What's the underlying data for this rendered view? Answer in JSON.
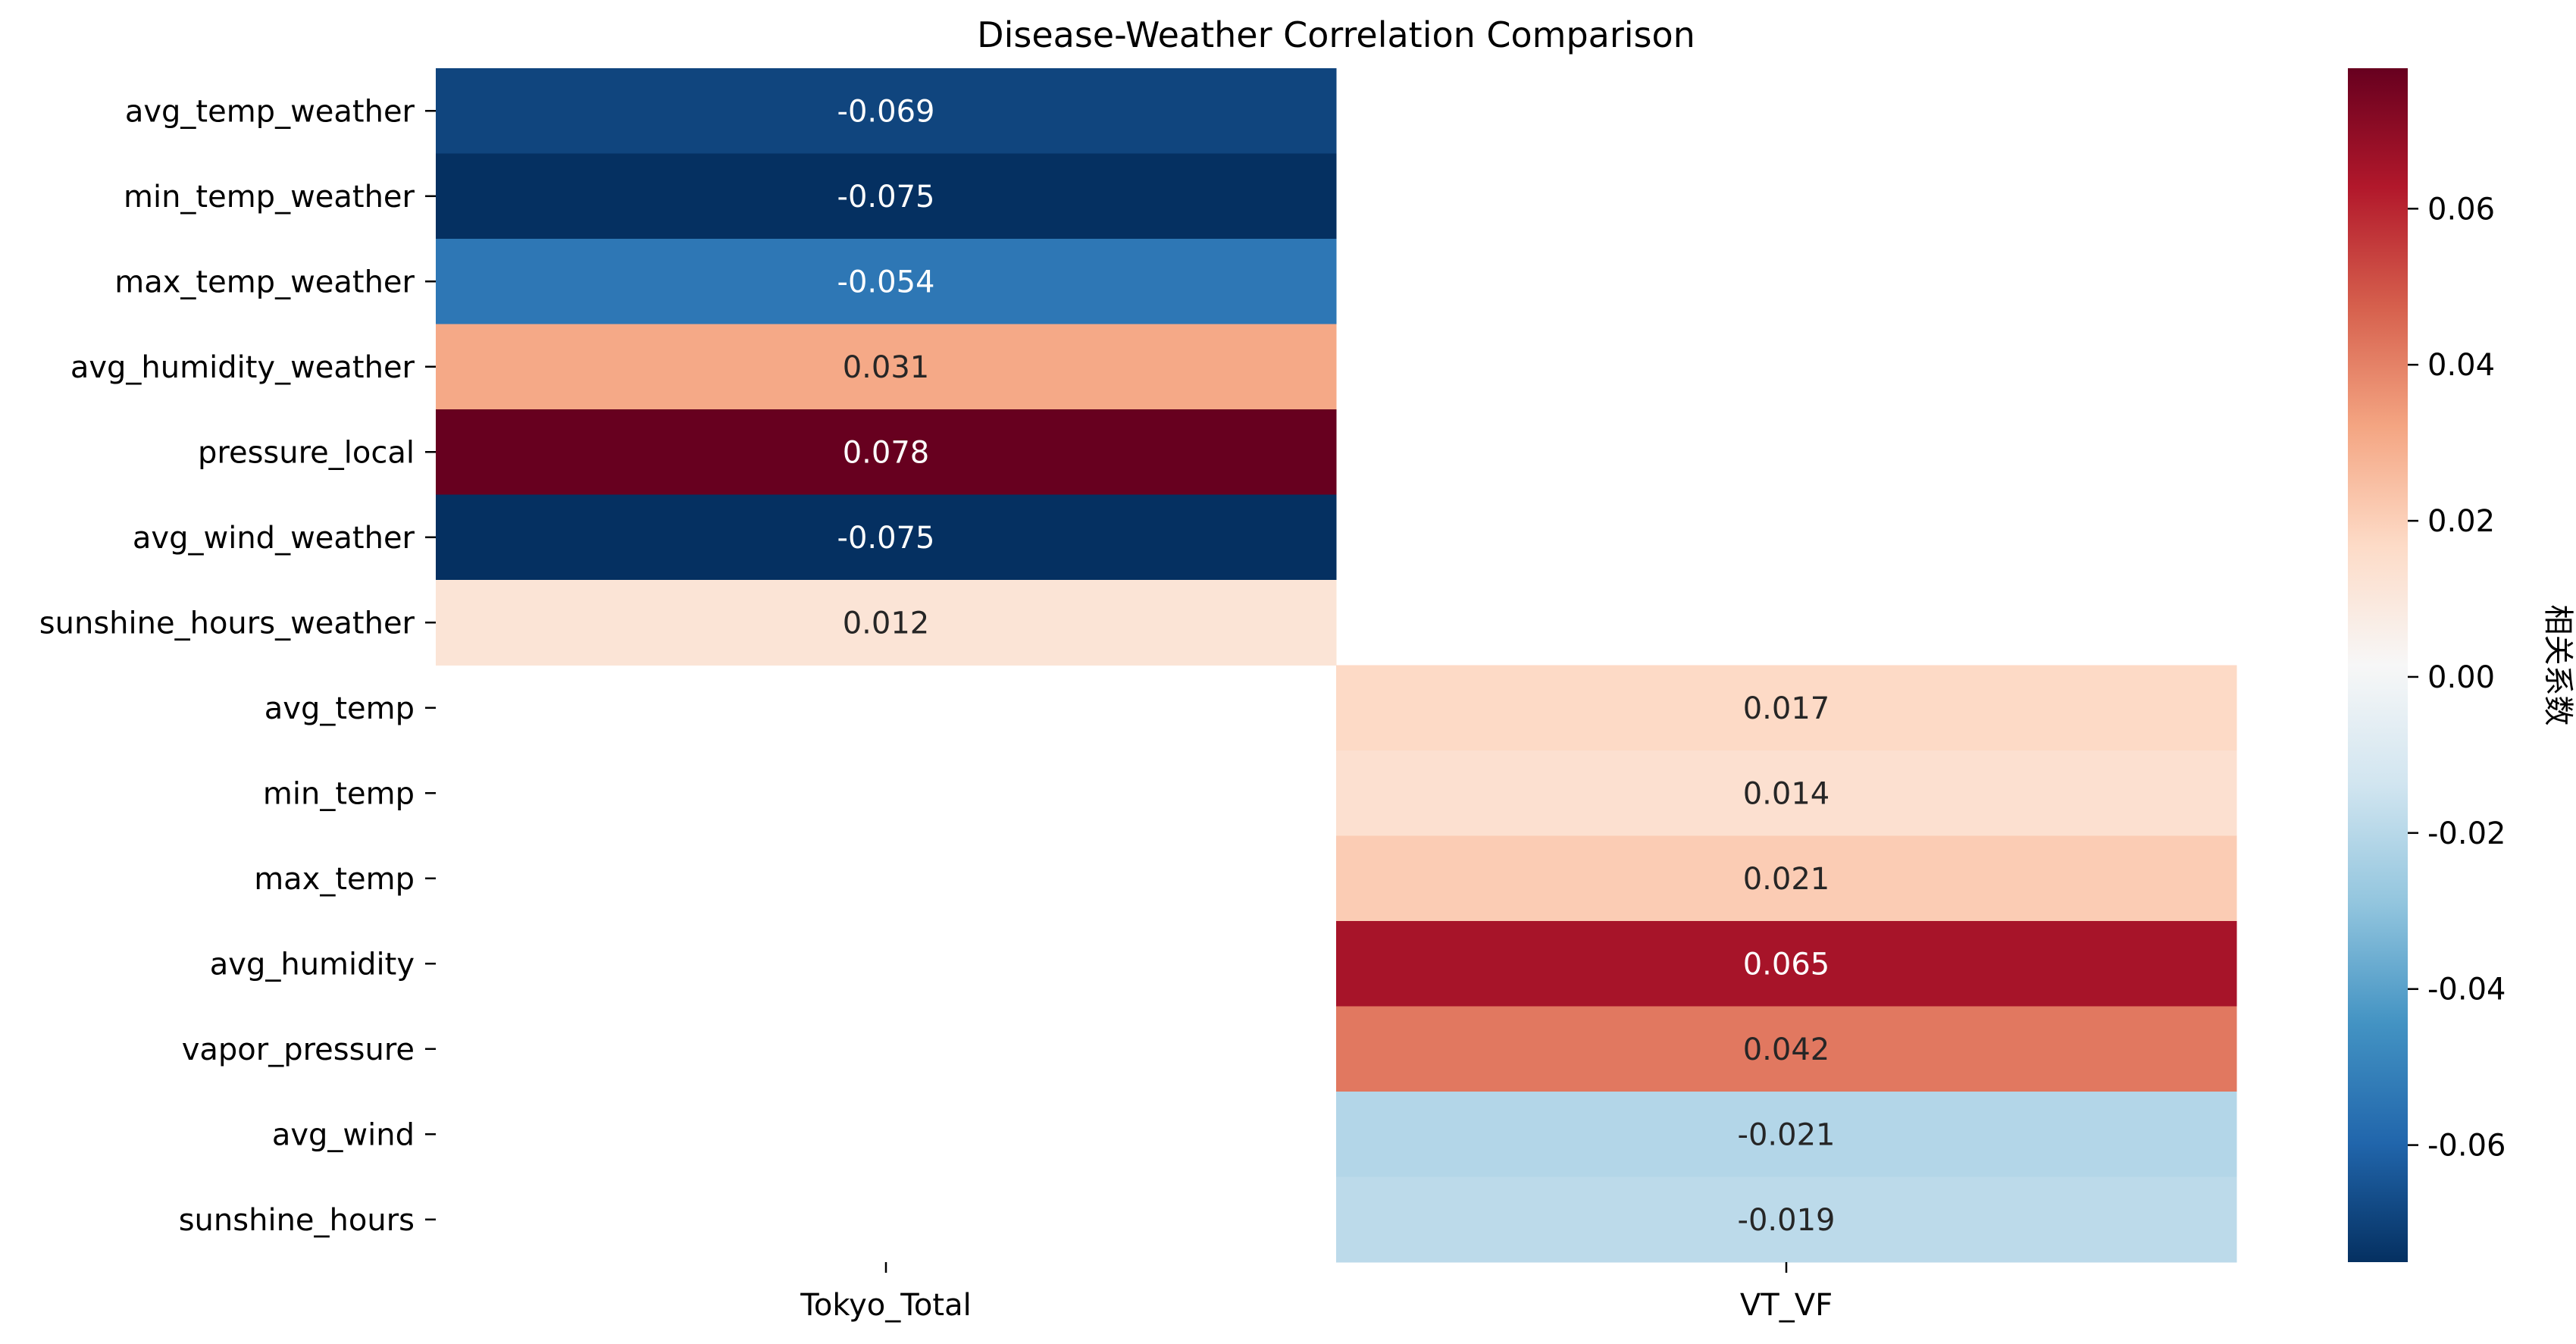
{
  "chart_data": {
    "type": "heatmap",
    "title": "Disease-Weather Correlation Comparison",
    "columns": [
      "Tokyo_Total",
      "VT_VF"
    ],
    "rows": [
      "avg_temp_weather",
      "min_temp_weather",
      "max_temp_weather",
      "avg_humidity_weather",
      "pressure_local",
      "avg_wind_weather",
      "sunshine_hours_weather",
      "avg_temp",
      "min_temp",
      "max_temp",
      "avg_humidity",
      "vapor_pressure",
      "avg_wind",
      "sunshine_hours"
    ],
    "values": [
      [
        -0.069,
        null
      ],
      [
        -0.075,
        null
      ],
      [
        -0.054,
        null
      ],
      [
        0.031,
        null
      ],
      [
        0.078,
        null
      ],
      [
        -0.075,
        null
      ],
      [
        0.012,
        null
      ],
      [
        null,
        0.017
      ],
      [
        null,
        0.014
      ],
      [
        null,
        0.021
      ],
      [
        null,
        0.065
      ],
      [
        null,
        0.042
      ],
      [
        null,
        -0.021
      ],
      [
        null,
        -0.019
      ]
    ],
    "cell_labels": [
      [
        "-0.069",
        ""
      ],
      [
        "-0.075",
        ""
      ],
      [
        "-0.054",
        ""
      ],
      [
        "0.031",
        ""
      ],
      [
        "0.078",
        ""
      ],
      [
        "-0.075",
        ""
      ],
      [
        "0.012",
        ""
      ],
      [
        "",
        "0.017"
      ],
      [
        "",
        "0.014"
      ],
      [
        "",
        "0.021"
      ],
      [
        "",
        "0.065"
      ],
      [
        "",
        "0.042"
      ],
      [
        "",
        "-0.021"
      ],
      [
        "",
        "-0.019"
      ]
    ],
    "colormap": "RdBu_r",
    "vmin": -0.075,
    "vmax": 0.078,
    "colorbar": {
      "ticks": [
        0.06,
        0.04,
        0.02,
        0.0,
        -0.02,
        -0.04,
        -0.06
      ],
      "tick_labels": [
        "0.06",
        "0.04",
        "0.02",
        "0.00",
        "-0.02",
        "-0.04",
        "-0.06"
      ],
      "label": "相关系数"
    }
  }
}
